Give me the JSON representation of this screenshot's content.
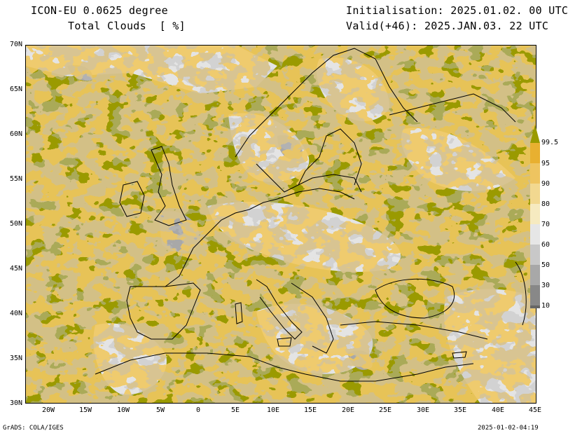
{
  "header": {
    "model_title": "ICON-EU 0.0625 degree",
    "variable": "Total Clouds  [ %]",
    "initialisation": "Initialisation: 2025.01.02. 00 UTC",
    "valid": "Valid(+46): 2025.JAN.03. 22 UTC"
  },
  "footer": {
    "software": "GrADS: COLA/IGES",
    "timestamp": "2025-01-02-04:19"
  },
  "map": {
    "lat_ticks": [
      "70N",
      "65N",
      "60N",
      "55N",
      "50N",
      "45N",
      "40N",
      "35N",
      "30N"
    ],
    "lon_ticks": [
      "20W",
      "15W",
      "10W",
      "5W",
      "0",
      "5E",
      "10E",
      "15E",
      "20E",
      "25E",
      "30E",
      "35E",
      "40E",
      "45E"
    ],
    "extent": {
      "lon": [
        -23,
        45
      ],
      "lat": [
        30,
        70
      ]
    }
  },
  "colorbar": {
    "labels": [
      "99.5",
      "95",
      "90",
      "80",
      "70",
      "60",
      "50",
      "30",
      "10"
    ],
    "colors": [
      "#9a9a00",
      "#e8b030",
      "#eec460",
      "#f2d890",
      "#f6eac0",
      "#e6e6e6",
      "#c8c8c8",
      "#a8a8a8",
      "#888888",
      "#666666"
    ]
  }
}
